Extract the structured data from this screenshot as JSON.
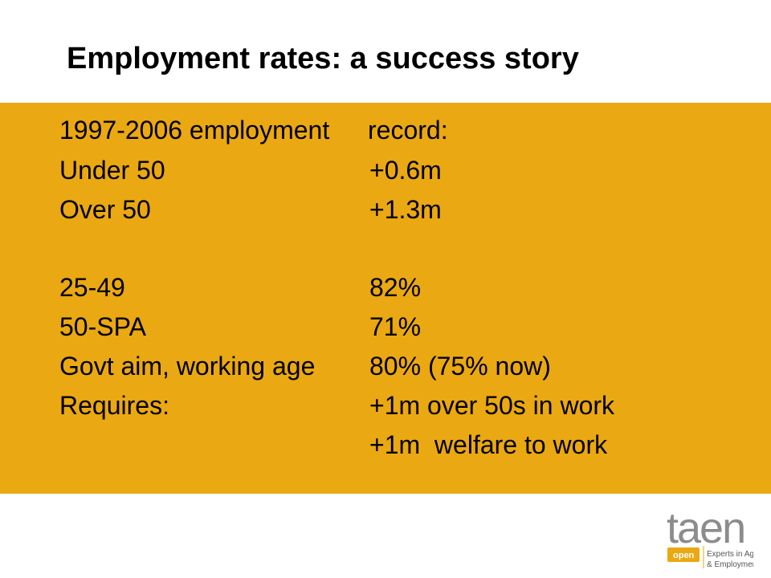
{
  "colors": {
    "band": "#EAA812",
    "logo_text": "#8c8c8c",
    "logo_tag": "#EAA812"
  },
  "title": "Employment rates: a success story",
  "rows": [
    {
      "left": "1997-2006 employment",
      "right": "record:"
    },
    {
      "left": "Under 50",
      "right": "+0.6m"
    },
    {
      "left": "Over 50",
      "right": "+1.3m"
    },
    {
      "left": "25-49",
      "right": "82%"
    },
    {
      "left": "50-SPA",
      "right": "71%"
    },
    {
      "left": "Govt aim, working age",
      "right": "80% (75% now)"
    },
    {
      "left": "Requires:",
      "right": "+1m over 50s in work"
    },
    {
      "left": "",
      "right": "+1m  welfare to work"
    }
  ],
  "logo": {
    "wordmark": "taen",
    "tag": "open",
    "tagline_1": "Experts in Age",
    "tagline_2": "& Employment"
  }
}
